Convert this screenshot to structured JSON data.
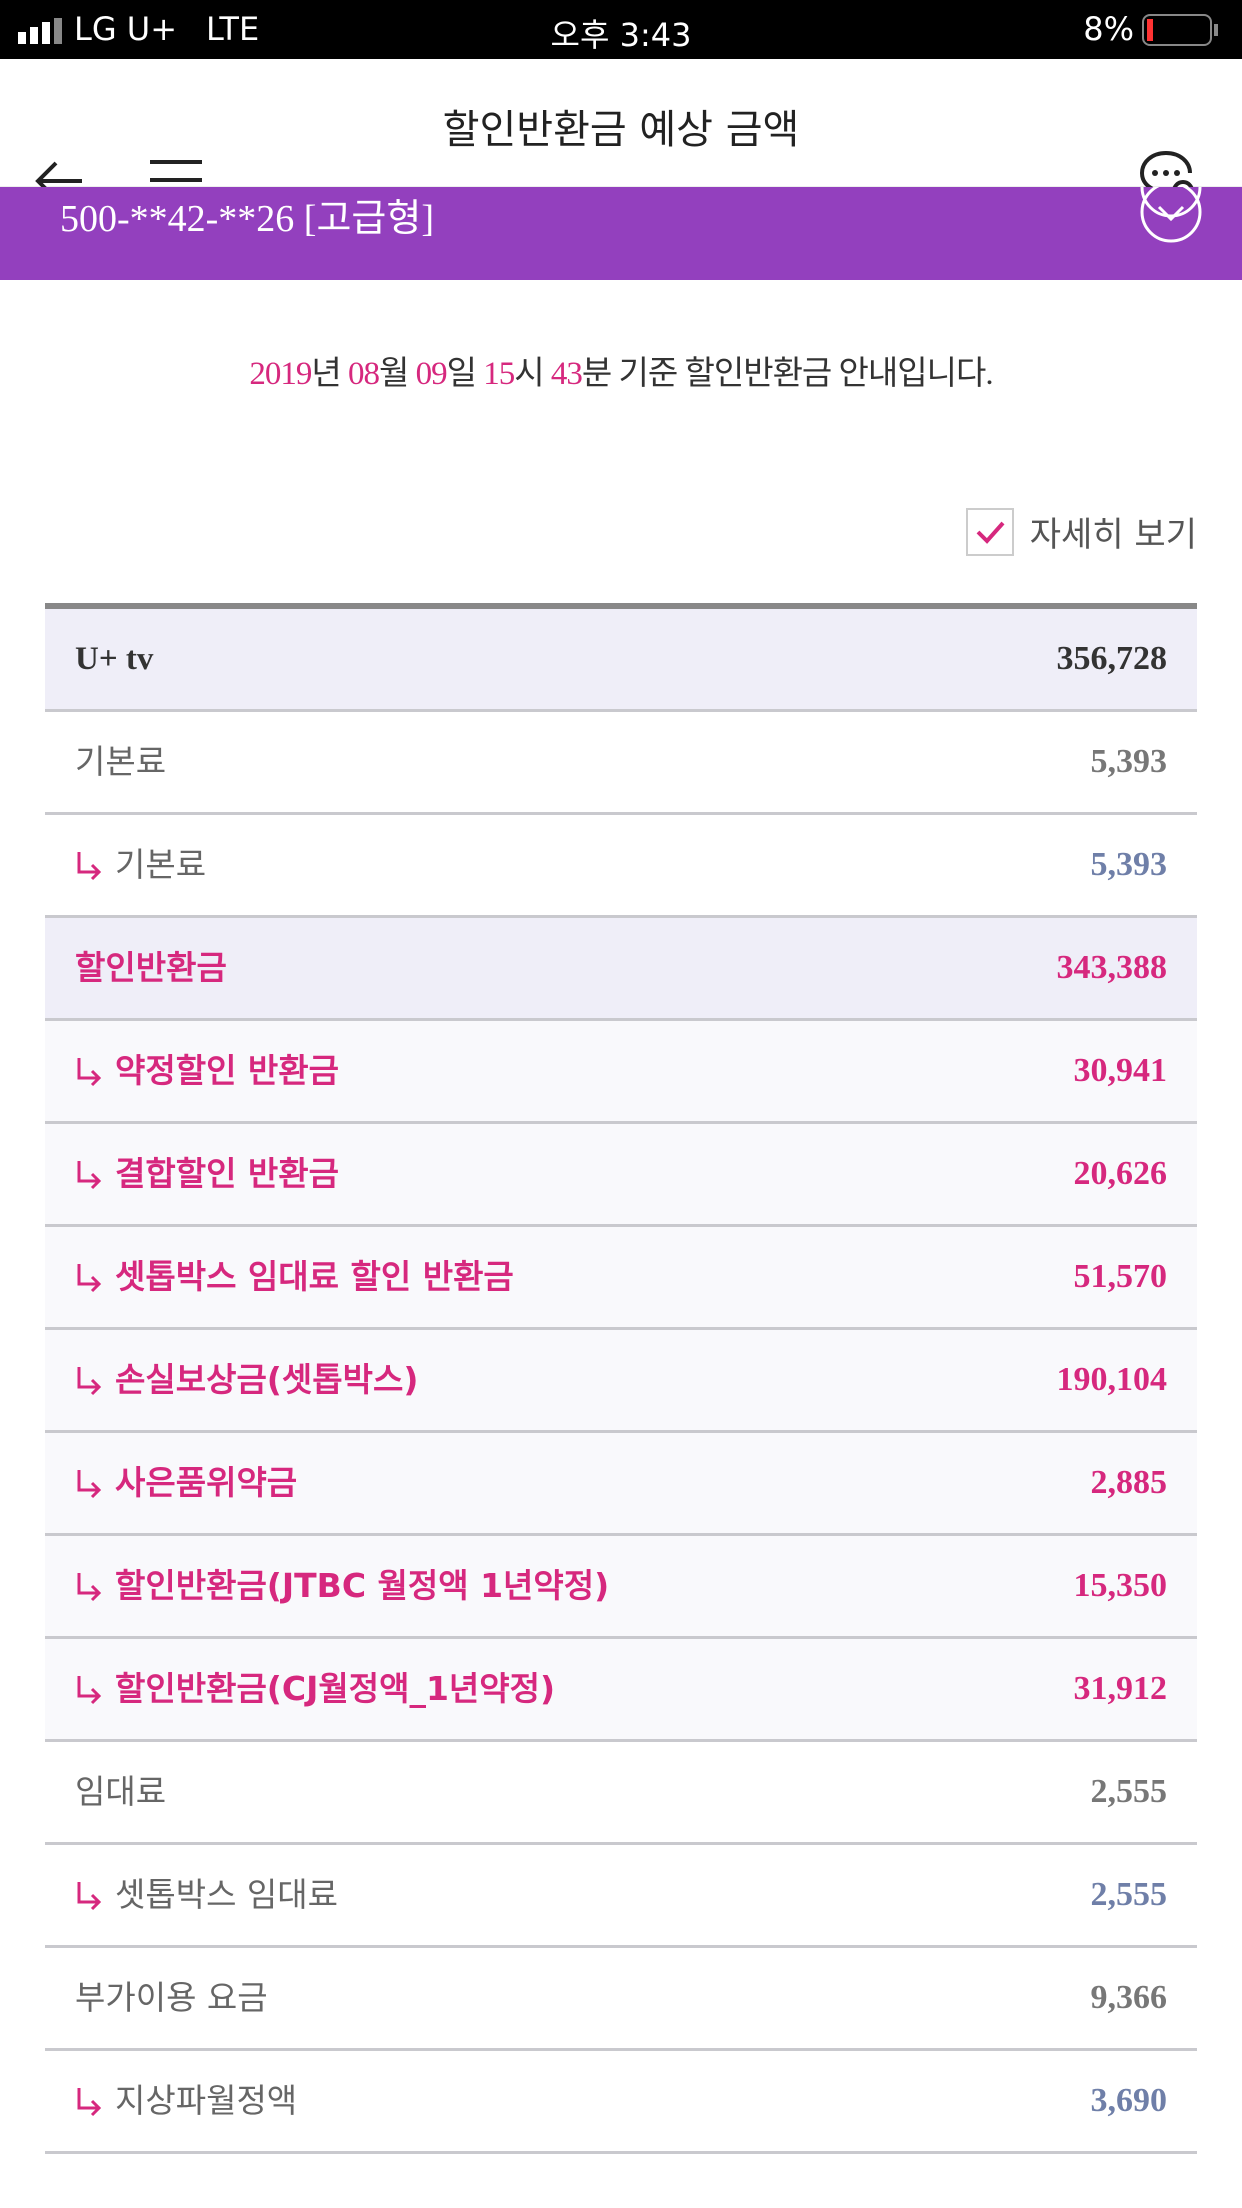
{
  "status_bar": {
    "carrier": "LG U+",
    "network": "LTE",
    "time": "오후 3:43",
    "battery": "8%"
  },
  "header": {
    "title": "할인반환금 예상 금액"
  },
  "account": {
    "number": "500-**42-**26 [고급형]"
  },
  "notice": {
    "segments": [
      {
        "text": "2019",
        "accent": true
      },
      {
        "text": "년 ",
        "accent": false
      },
      {
        "text": "08",
        "accent": true
      },
      {
        "text": "월 ",
        "accent": false
      },
      {
        "text": "09",
        "accent": true
      },
      {
        "text": "일 ",
        "accent": false
      },
      {
        "text": "15",
        "accent": true
      },
      {
        "text": "시 ",
        "accent": false
      },
      {
        "text": "43",
        "accent": true
      },
      {
        "text": "분 기준 할인반환금 안내입니다.",
        "accent": false
      }
    ]
  },
  "detail_toggle": {
    "label": "자세히 보기",
    "checked": true
  },
  "table": {
    "rows": [
      {
        "label": "U+ tv",
        "amount": "356,728",
        "kind": "total"
      },
      {
        "label": "기본료",
        "amount": "5,393",
        "kind": "group"
      },
      {
        "label": "기본료",
        "amount": "5,393",
        "kind": "sub"
      },
      {
        "label": "할인반환금",
        "amount": "343,388",
        "kind": "discount-group"
      },
      {
        "label": "약정할인 반환금",
        "amount": "30,941",
        "kind": "discount-sub"
      },
      {
        "label": "결합할인 반환금",
        "amount": "20,626",
        "kind": "discount-sub"
      },
      {
        "label": "셋톱박스 임대료 할인 반환금",
        "amount": "51,570",
        "kind": "discount-sub"
      },
      {
        "label": "손실보상금(셋톱박스)",
        "amount": "190,104",
        "kind": "discount-sub"
      },
      {
        "label": "사은품위약금",
        "amount": "2,885",
        "kind": "discount-sub"
      },
      {
        "label": "할인반환금(JTBC 월정액 1년약정)",
        "amount": "15,350",
        "kind": "discount-sub"
      },
      {
        "label": "할인반환금(CJ월정액_1년약정)",
        "amount": "31,912",
        "kind": "discount-sub"
      },
      {
        "label": "임대료",
        "amount": "2,555",
        "kind": "group"
      },
      {
        "label": "셋톱박스 임대료",
        "amount": "2,555",
        "kind": "sub"
      },
      {
        "label": "부가이용 요금",
        "amount": "9,366",
        "kind": "group"
      },
      {
        "label": "지상파월정액",
        "amount": "3,690",
        "kind": "sub"
      }
    ]
  }
}
